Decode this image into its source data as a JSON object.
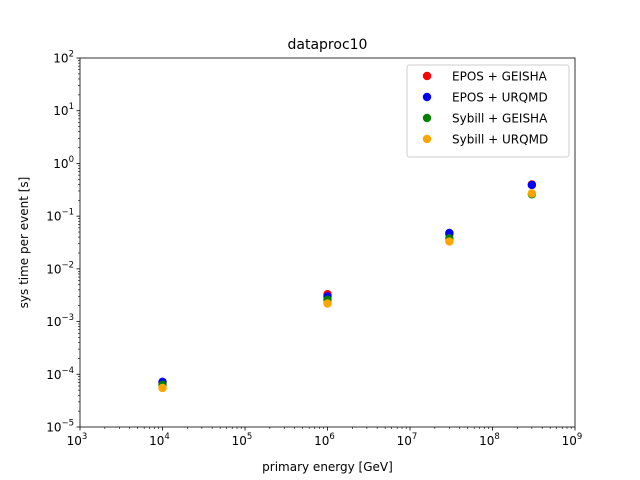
{
  "chart_data": {
    "type": "scatter",
    "title": "dataproc10",
    "xlabel": "primary energy [GeV]",
    "ylabel": "sys time per event [s]",
    "xscale": "log",
    "yscale": "log",
    "xlim": [
      1000,
      1000000000
    ],
    "ylim": [
      1e-05,
      100
    ],
    "x_ticks": [
      {
        "base": "10",
        "exp": "3"
      },
      {
        "base": "10",
        "exp": "4"
      },
      {
        "base": "10",
        "exp": "5"
      },
      {
        "base": "10",
        "exp": "6"
      },
      {
        "base": "10",
        "exp": "7"
      },
      {
        "base": "10",
        "exp": "8"
      },
      {
        "base": "10",
        "exp": "9"
      }
    ],
    "y_ticks": [
      {
        "base": "10",
        "exp": "−5"
      },
      {
        "base": "10",
        "exp": "−4"
      },
      {
        "base": "10",
        "exp": "−3"
      },
      {
        "base": "10",
        "exp": "−2"
      },
      {
        "base": "10",
        "exp": "−1"
      },
      {
        "base": "10",
        "exp": "0"
      },
      {
        "base": "10",
        "exp": "1"
      },
      {
        "base": "10",
        "exp": "2"
      }
    ],
    "grid": false,
    "legend_position": "top-right",
    "series": [
      {
        "name": "EPOS + GEISHA",
        "color": "#ff0000",
        "points": [
          {
            "x": 10000,
            "y": 6.8e-05
          },
          {
            "x": 1000000,
            "y": 0.0033
          },
          {
            "x": 30000000,
            "y": 0.045
          },
          {
            "x": 300000000,
            "y": 0.4
          }
        ]
      },
      {
        "name": "EPOS + URQMD",
        "color": "#0000ff",
        "points": [
          {
            "x": 10000,
            "y": 7.2e-05
          },
          {
            "x": 1000000,
            "y": 0.003
          },
          {
            "x": 30000000,
            "y": 0.048
          },
          {
            "x": 300000000,
            "y": 0.39
          }
        ]
      },
      {
        "name": "Sybill + GEISHA",
        "color": "#008000",
        "points": [
          {
            "x": 10000,
            "y": 6.3e-05
          },
          {
            "x": 1000000,
            "y": 0.0026
          },
          {
            "x": 30000000,
            "y": 0.038
          },
          {
            "x": 300000000,
            "y": 0.26
          }
        ]
      },
      {
        "name": "Sybill + URQMD",
        "color": "#ffa500",
        "points": [
          {
            "x": 10000,
            "y": 5.5e-05
          },
          {
            "x": 1000000,
            "y": 0.0022
          },
          {
            "x": 30000000,
            "y": 0.033
          },
          {
            "x": 300000000,
            "y": 0.27
          }
        ]
      }
    ]
  }
}
